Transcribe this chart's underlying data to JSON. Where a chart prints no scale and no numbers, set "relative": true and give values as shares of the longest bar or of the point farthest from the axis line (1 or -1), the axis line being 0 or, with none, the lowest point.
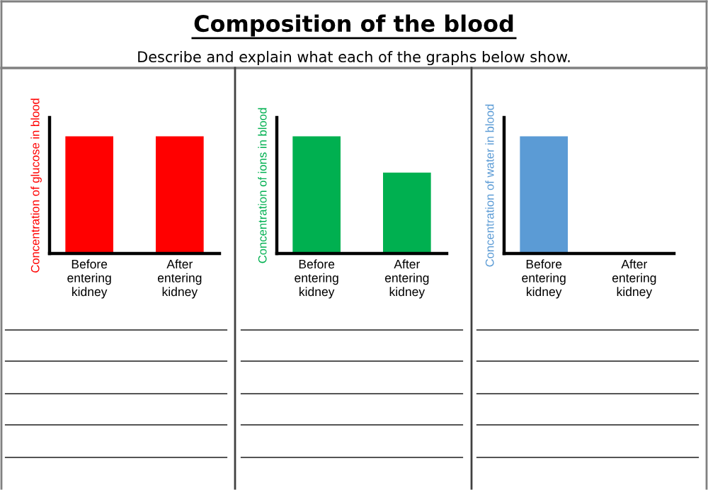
{
  "chart_data": [
    {
      "type": "bar",
      "ylabel": "Concentration of glucose in blood",
      "categories": [
        "Before\nentering\nkidney",
        "After\nentering\nkidney"
      ],
      "relative": true,
      "grid": false,
      "legend": false,
      "tick_labels": "x",
      "series": [
        {
          "color": "#ff0000",
          "values": [
            1,
            1
          ]
        }
      ]
    },
    {
      "type": "bar",
      "title": "Composition of the blood",
      "subtitle": "Describe and explain what each of the graphs below show.",
      "ylabel": "Concentration of ions in blood",
      "categories": [
        "Before\nentering\nkidney",
        "After\nentering\nkidney"
      ],
      "relative": true,
      "grid": false,
      "legend": false,
      "tick_labels": "x",
      "series": [
        {
          "color": "#00b050",
          "values": [
            1,
            0.69
          ]
        }
      ]
    },
    {
      "type": "bar",
      "ylabel": "Concentration of water in blood",
      "categories": [
        "Before\nentering\nkidney",
        "After\nentering\nkidney"
      ],
      "relative": true,
      "grid": false,
      "legend": false,
      "tick_labels": "x",
      "series": [
        {
          "color": "#5b9bd5",
          "values": [
            1,
            0
          ]
        }
      ]
    }
  ]
}
